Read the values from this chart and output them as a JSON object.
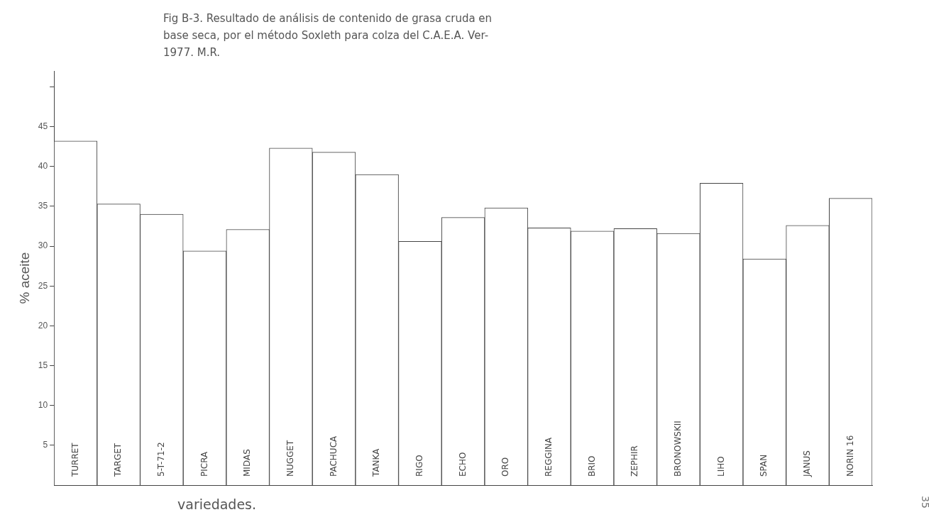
{
  "chart_data": {
    "type": "bar",
    "title": "Fig  B-3.  Resultado de análisis de contenido de grasa cruda en base seca, por el método Soxleth para colza del C.A.E.A. Ver-1977. M.R.",
    "xlabel": "variedades.",
    "ylabel": "% aceite",
    "categories": [
      "TURRET",
      "TARGET",
      "5-T-71-2",
      "PICRA",
      "MIDAS",
      "NUGGET",
      "PACHUCA",
      "TANKA",
      "RIGO",
      "ECHO",
      "ORO",
      "REGGINA",
      "BRIO",
      "ZEPHIR",
      "BRONOWSKII",
      "LIHO",
      "SPAN",
      "JANUS",
      "NORIN 16"
    ],
    "values": [
      43.2,
      35.3,
      34.0,
      29.4,
      32.1,
      42.3,
      41.8,
      39.0,
      30.6,
      33.6,
      34.8,
      32.3,
      31.9,
      32.2,
      31.6,
      37.9,
      28.4,
      32.6,
      36.0
    ],
    "color": "#ffffff",
    "ylim": [
      0,
      52
    ],
    "yticks": [
      5,
      10,
      15,
      20,
      25,
      30,
      35,
      40,
      45,
      {
        "value": 50,
        "label": null
      }
    ],
    "grid": false,
    "annotations": [
      "35"
    ]
  }
}
